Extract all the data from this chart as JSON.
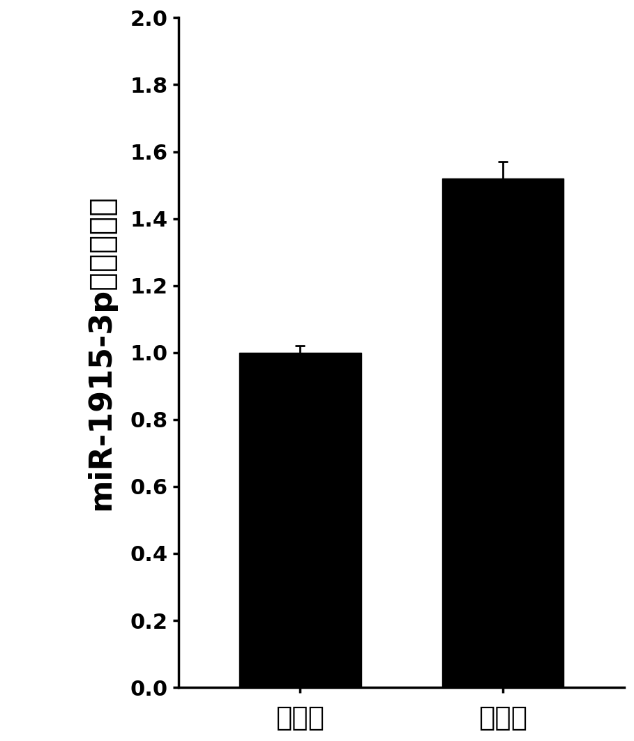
{
  "categories": [
    "对照组",
    "实验组"
  ],
  "values": [
    1.0,
    1.52
  ],
  "errors": [
    0.02,
    0.05
  ],
  "bar_color": "#000000",
  "bar_width": 0.6,
  "ylim": [
    0.0,
    2.0
  ],
  "yticks": [
    0.0,
    0.2,
    0.4,
    0.6,
    0.8,
    1.0,
    1.2,
    1.4,
    1.6,
    1.8,
    2.0
  ],
  "ylabel_text": "miR-1915-3p的表达相对",
  "background_color": "#ffffff",
  "tick_fontsize": 22,
  "xlabel_fontsize": 28,
  "ylabel_fontsize": 32,
  "errorbar_color": "#000000",
  "errorbar_linewidth": 2,
  "errorbar_capsize": 5
}
